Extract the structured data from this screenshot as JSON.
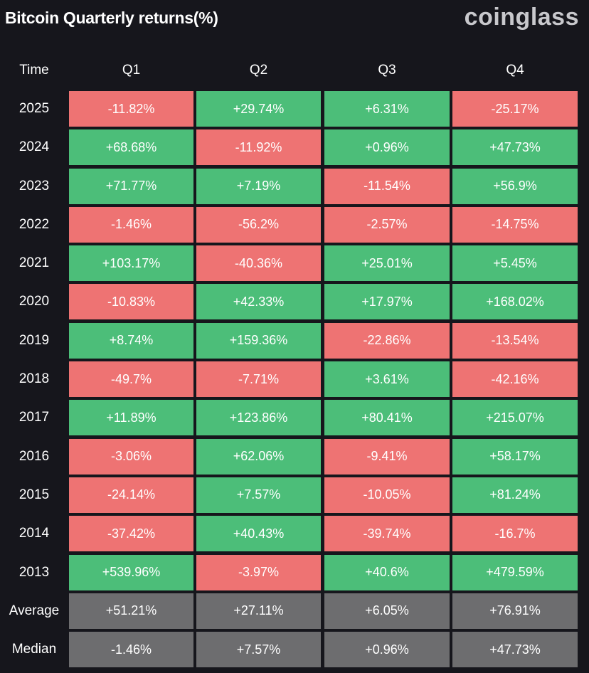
{
  "header": {
    "title": "Bitcoin Quarterly returns(%)",
    "brand": "coinglass"
  },
  "colors": {
    "positive": "#4cbe79",
    "negative": "#ee7373",
    "summary": "#6d6d6f",
    "background": "#16161c"
  },
  "chart_data": {
    "type": "table",
    "title": "Bitcoin Quarterly returns(%)",
    "columns": [
      "Time",
      "Q1",
      "Q2",
      "Q3",
      "Q4"
    ],
    "rows": [
      {
        "label": "2025",
        "values": [
          "-11.82%",
          "+29.74%",
          "+6.31%",
          "-25.17%"
        ]
      },
      {
        "label": "2024",
        "values": [
          "+68.68%",
          "-11.92%",
          "+0.96%",
          "+47.73%"
        ]
      },
      {
        "label": "2023",
        "values": [
          "+71.77%",
          "+7.19%",
          "-11.54%",
          "+56.9%"
        ]
      },
      {
        "label": "2022",
        "values": [
          "-1.46%",
          "-56.2%",
          "-2.57%",
          "-14.75%"
        ]
      },
      {
        "label": "2021",
        "values": [
          "+103.17%",
          "-40.36%",
          "+25.01%",
          "+5.45%"
        ]
      },
      {
        "label": "2020",
        "values": [
          "-10.83%",
          "+42.33%",
          "+17.97%",
          "+168.02%"
        ]
      },
      {
        "label": "2019",
        "values": [
          "+8.74%",
          "+159.36%",
          "-22.86%",
          "-13.54%"
        ]
      },
      {
        "label": "2018",
        "values": [
          "-49.7%",
          "-7.71%",
          "+3.61%",
          "-42.16%"
        ]
      },
      {
        "label": "2017",
        "values": [
          "+11.89%",
          "+123.86%",
          "+80.41%",
          "+215.07%"
        ]
      },
      {
        "label": "2016",
        "values": [
          "-3.06%",
          "+62.06%",
          "-9.41%",
          "+58.17%"
        ]
      },
      {
        "label": "2015",
        "values": [
          "-24.14%",
          "+7.57%",
          "-10.05%",
          "+81.24%"
        ]
      },
      {
        "label": "2014",
        "values": [
          "-37.42%",
          "+40.43%",
          "-39.74%",
          "-16.7%"
        ]
      },
      {
        "label": "2013",
        "values": [
          "+539.96%",
          "-3.97%",
          "+40.6%",
          "+479.59%"
        ]
      }
    ],
    "summary": [
      {
        "label": "Average",
        "values": [
          "+51.21%",
          "+27.11%",
          "+6.05%",
          "+76.91%"
        ]
      },
      {
        "label": "Median",
        "values": [
          "-1.46%",
          "+7.57%",
          "+0.96%",
          "+47.73%"
        ]
      }
    ]
  }
}
